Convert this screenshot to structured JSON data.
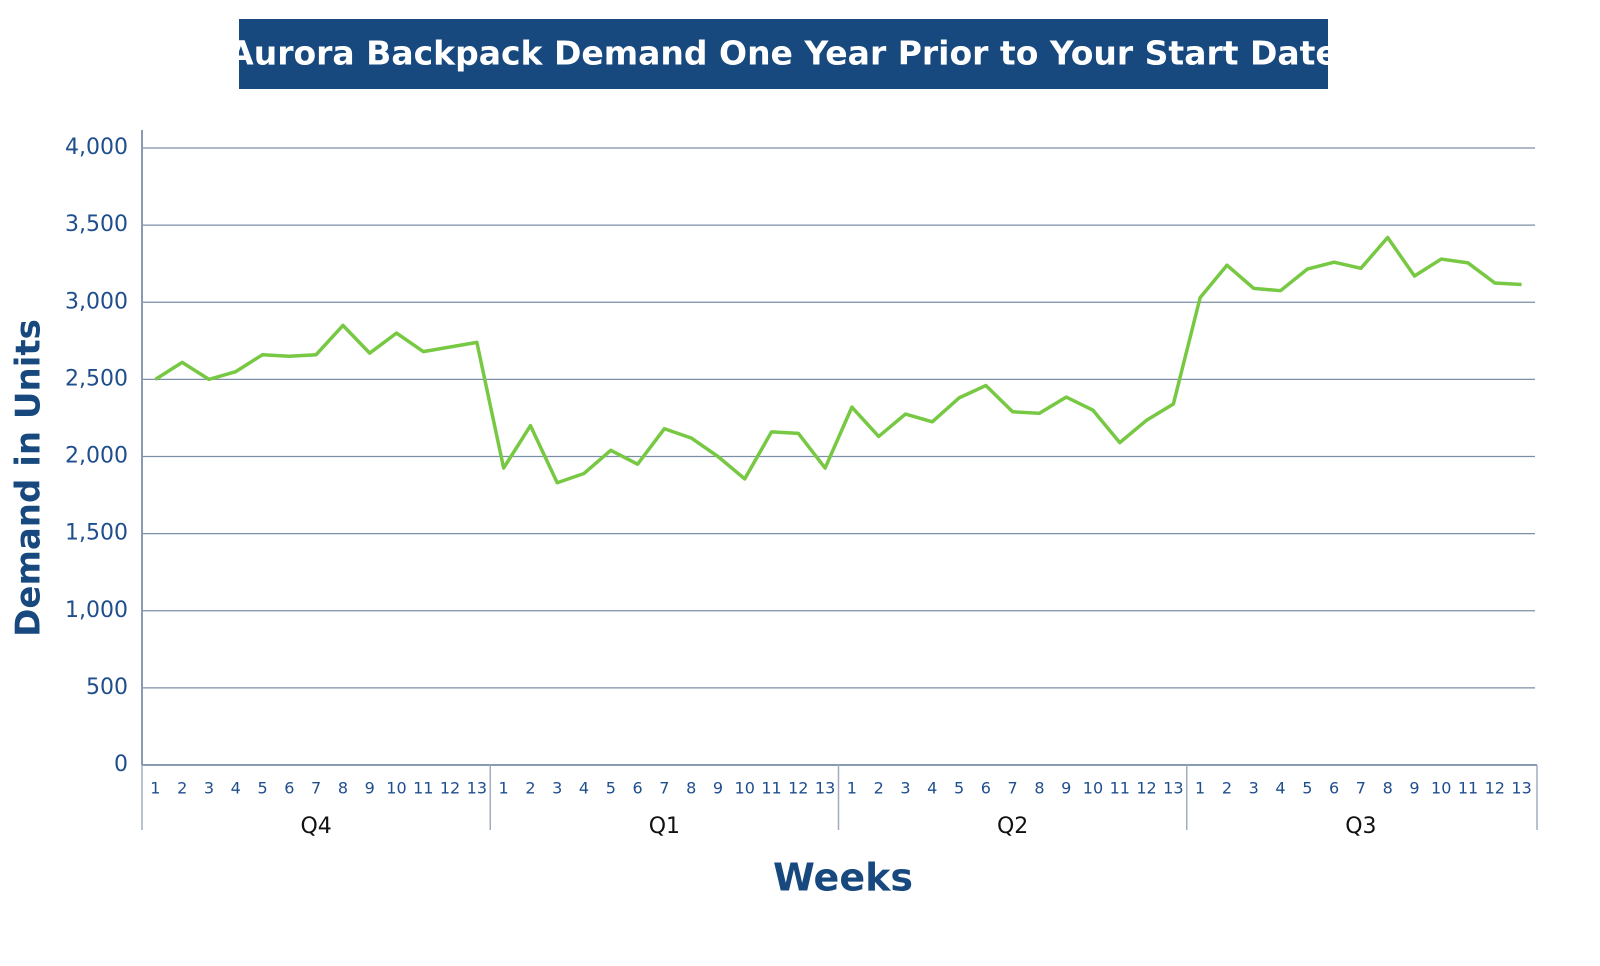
{
  "chart_data": {
    "type": "line",
    "title": "Aurora Backpack Demand One Year Prior to Your Start Date",
    "x_label": "Weeks",
    "y_label": "Demand in Units",
    "categories": [
      "1",
      "2",
      "3",
      "4",
      "5",
      "6",
      "7",
      "8",
      "9",
      "10",
      "11",
      "12",
      "13",
      "1",
      "2",
      "3",
      "4",
      "5",
      "6",
      "7",
      "8",
      "9",
      "10",
      "11",
      "12",
      "13",
      "1",
      "2",
      "3",
      "4",
      "5",
      "6",
      "7",
      "8",
      "9",
      "10",
      "11",
      "12",
      "13",
      "1",
      "2",
      "3",
      "4",
      "5",
      "6",
      "7",
      "8",
      "9",
      "10",
      "11",
      "12",
      "13"
    ],
    "groups": [
      "Q4",
      "Q1",
      "Q2",
      "Q3"
    ],
    "series": [
      {
        "name": "Demand",
        "color": "#77c843",
        "values": [
          2500,
          2610,
          2500,
          2550,
          2660,
          2650,
          2660,
          2850,
          2670,
          2800,
          2680,
          2710,
          2740,
          1925,
          2200,
          1830,
          1890,
          2040,
          1950,
          2180,
          2120,
          2000,
          1855,
          2160,
          2150,
          1925,
          2320,
          2130,
          2275,
          2225,
          2380,
          2460,
          2290,
          2280,
          2385,
          2300,
          2090,
          2235,
          2340,
          3030,
          3240,
          3090,
          3075,
          3215,
          3260,
          3220,
          3420,
          3170,
          3280,
          3255,
          3125,
          3115
        ]
      }
    ],
    "ylim": [
      0,
      4000
    ],
    "yticks": [
      0,
      500,
      {
        "value": 1000,
        "label": "1,000"
      },
      {
        "value": 1500,
        "label": "1,500"
      },
      {
        "value": 2000,
        "label": "2,000"
      },
      {
        "value": 2500,
        "label": "2,500"
      },
      {
        "value": 3000,
        "label": "3,000"
      },
      {
        "value": 3500,
        "label": "3,500"
      },
      {
        "value": 4000,
        "label": "4,000"
      }
    ],
    "grid": true
  }
}
